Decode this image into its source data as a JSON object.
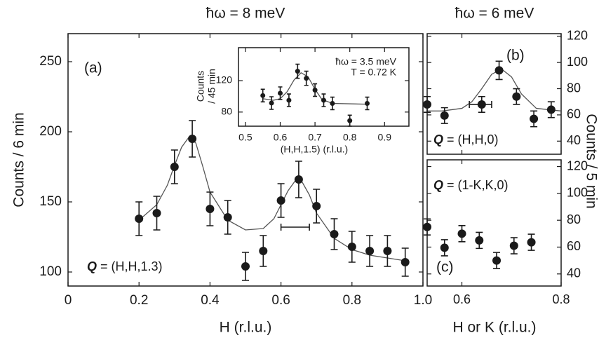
{
  "chart_data": [
    {
      "type": "scatter",
      "title": "ħω = 8 meV",
      "x_label": "H (r.l.u.)",
      "y_label": "Counts / 6 min",
      "label": "(a)",
      "annotation": {
        "symbol": "Q",
        "text": " = (H,H,1.3)"
      },
      "xlim": [
        0,
        1
      ],
      "ylim": [
        90,
        270
      ],
      "xticks": [
        0,
        0.2,
        0.4,
        0.6,
        0.8,
        {
          "value": 1,
          "label": "1.0"
        }
      ],
      "yticks": [
        100,
        150,
        200,
        250
      ],
      "color": "#1a1a1a",
      "points": {
        "x": [
          0.2,
          0.25,
          0.3,
          0.35,
          0.4,
          0.45,
          0.5,
          0.55,
          0.6,
          0.65,
          0.7,
          0.75,
          0.8,
          0.85,
          0.9,
          0.95
        ],
        "values": [
          138,
          142,
          175,
          195,
          145,
          139,
          104,
          115,
          151,
          166,
          147,
          127,
          118,
          115,
          115,
          107
        ],
        "errors": [
          12,
          12,
          12,
          13,
          12,
          12,
          10,
          11,
          12,
          13,
          12,
          11,
          11,
          11,
          11,
          10
        ]
      },
      "fit": {
        "x": [
          0.2,
          0.25,
          0.28,
          0.3,
          0.32,
          0.34,
          0.36,
          0.38,
          0.4,
          0.45,
          0.5,
          0.55,
          0.58,
          0.6,
          0.62,
          0.64,
          0.66,
          0.68,
          0.7,
          0.75,
          0.8,
          0.85,
          0.9,
          0.95
        ],
        "values": [
          137,
          148,
          162,
          176,
          189,
          196,
          192,
          175,
          157,
          137,
          130,
          131,
          138,
          148,
          158,
          165,
          164,
          155,
          142,
          124,
          116,
          112,
          110,
          108
        ]
      },
      "resolution": {
        "x": [
          0.6,
          0.68
        ],
        "y": 132
      }
    },
    {
      "type": "scatter",
      "x_label": "(H,H,1.5) (r.l.u.)",
      "y_label": [
        "Counts",
        "/ 45 min"
      ],
      "annotation_lines": [
        "ħω = 3.5 meV",
        "T = 0.72 K"
      ],
      "xlim": [
        0.48,
        0.97
      ],
      "ylim": [
        62,
        162
      ],
      "xticks": [
        0.5,
        0.6,
        0.7,
        0.8,
        0.9
      ],
      "yticks": [
        80,
        120
      ],
      "color": "#1a1a1a",
      "points": {
        "x": [
          0.55,
          0.575,
          0.6,
          0.625,
          0.65,
          0.675,
          0.7,
          0.725,
          0.75,
          0.8,
          0.85
        ],
        "values": [
          101,
          91.5,
          104,
          95,
          132,
          123,
          108,
          95,
          91,
          69,
          91
        ],
        "errors": [
          8,
          8,
          8,
          8,
          9,
          9,
          8,
          8,
          8,
          7,
          8
        ]
      },
      "fit": {
        "x": [
          0.55,
          0.58,
          0.6,
          0.62,
          0.64,
          0.66,
          0.68,
          0.7,
          0.72,
          0.75,
          0.85
        ],
        "values": [
          97,
          95,
          97,
          106,
          121,
          130,
          125,
          109,
          96,
          91,
          90
        ]
      }
    },
    {
      "type": "scatter",
      "title": "ħω = 6 meV",
      "y_label": "Counts / 5 min",
      "label": "(b)",
      "annotation": {
        "symbol": "Q",
        "text": " = (H,H,0)"
      },
      "yaxis": "right",
      "xlim": [
        0.53,
        0.8
      ],
      "ylim": [
        30,
        122
      ],
      "yticks": [
        40,
        60,
        80,
        100,
        120
      ],
      "color": "#1a1a1a",
      "points": {
        "x": [
          0.53,
          0.565,
          0.64,
          0.675,
          0.71,
          0.745,
          0.78
        ],
        "values": [
          68,
          59.5,
          68,
          94,
          74,
          57,
          64
        ],
        "errors": [
          6,
          6,
          6,
          7,
          6,
          6,
          6
        ]
      },
      "fit": {
        "x": [
          0.53,
          0.56,
          0.6,
          0.62,
          0.64,
          0.66,
          0.68,
          0.7,
          0.72,
          0.75,
          0.8
        ],
        "values": [
          63,
          63,
          65,
          70,
          80,
          91,
          95,
          89,
          76,
          65,
          63
        ]
      },
      "resolution": {
        "x": [
          0.615,
          0.66
        ],
        "y": 68
      }
    },
    {
      "type": "scatter",
      "x_label": "H or K (r.l.u.)",
      "label": "(c)",
      "annotation": {
        "symbol": "Q",
        "text": " = (1-K,K,0)"
      },
      "yaxis": "right",
      "xlim": [
        0.53,
        0.8
      ],
      "ylim": [
        31,
        125
      ],
      "xticks": [
        0.6,
        0.8
      ],
      "yticks": [
        40,
        60,
        80,
        100,
        120
      ],
      "color": "#1a1a1a",
      "points": {
        "x": [
          0.53,
          0.565,
          0.6,
          0.635,
          0.67,
          0.705,
          0.74
        ],
        "values": [
          75,
          59.5,
          70,
          65,
          50,
          61,
          63.6
        ],
        "errors": [
          6,
          6,
          6,
          6,
          6,
          6,
          6
        ]
      }
    }
  ]
}
